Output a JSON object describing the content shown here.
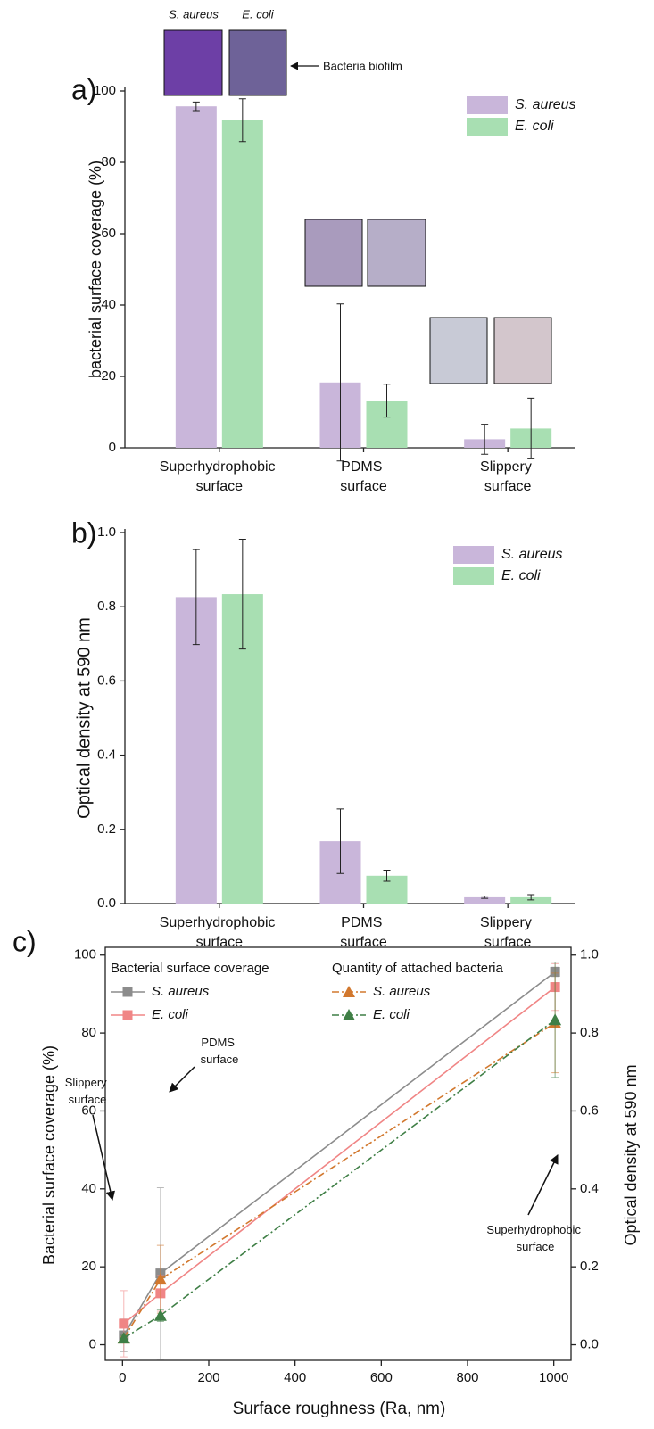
{
  "chart_data": [
    {
      "type": "bar",
      "panel_label": "a)",
      "y_label": "bacterial surface coverage (%)",
      "categories": [
        "Superhydrophobic surface",
        "PDMS surface",
        "Slippery surface"
      ],
      "series": [
        {
          "name": "S. aureus",
          "color": "#c9b6da",
          "values": [
            95.7,
            18.3,
            2.4
          ],
          "errors": [
            1.2,
            22,
            4.2
          ]
        },
        {
          "name": "E. coli",
          "color": "#a8dfb2",
          "values": [
            91.8,
            13.2,
            5.4
          ],
          "errors": [
            6,
            4.6,
            8.5
          ]
        }
      ],
      "ylim": [
        0,
        100
      ],
      "yticks": [
        0,
        20,
        40,
        60,
        80,
        100
      ],
      "annotations": [
        "S. aureus",
        "E. coli",
        "Bacteria biofilm"
      ],
      "legend": "upper right"
    },
    {
      "type": "bar",
      "panel_label": "b)",
      "y_label": "Optical density at 590 nm",
      "categories": [
        "Superhydrophobic surface",
        "PDMS surface",
        "Slippery surface"
      ],
      "series": [
        {
          "name": "S. aureus",
          "color": "#c9b6da",
          "values": [
            0.826,
            0.168,
            0.017
          ],
          "errors": [
            0.128,
            0.087,
            0.003
          ]
        },
        {
          "name": "E. coli",
          "color": "#a8dfb2",
          "values": [
            0.834,
            0.075,
            0.017
          ],
          "errors": [
            0.148,
            0.015,
            0.007
          ]
        }
      ],
      "ylim": [
        0,
        1
      ],
      "yticks": [
        {
          "value": 0,
          "label": "0.0"
        },
        0.2,
        0.4,
        0.6,
        0.8,
        {
          "value": 1,
          "label": "1.0"
        }
      ],
      "legend": "upper right"
    },
    {
      "type": "line",
      "panel_label": "c)",
      "x_label": "Surface roughness (Ra, nm)",
      "y_label": "Bacterial surface coverage (%)",
      "y2_label": "Optical density at 590 nm",
      "legend_titles": [
        "Bacterial surface coverage",
        "Quantity of attached bacteria"
      ],
      "x": [
        3,
        88,
        1003
      ],
      "series": [
        {
          "name": "S. aureus",
          "color": "#8c8c8c",
          "marker": "square",
          "linestyle": "solid",
          "values": [
            2.4,
            18.3,
            95.7
          ],
          "errors": [
            4.2,
            22,
            1.2
          ]
        },
        {
          "name": "E. coli",
          "color": "#f08585",
          "marker": "square",
          "linestyle": "solid",
          "values": [
            5.4,
            13.2,
            91.8
          ],
          "errors": [
            8.5,
            4.6,
            6
          ]
        },
        {
          "name": "S. aureus",
          "color": "#d2782e",
          "marker": "triangle",
          "linestyle": "dashdot",
          "axis": "y2",
          "values": [
            0.017,
            0.168,
            0.826
          ],
          "errors": [
            0.003,
            0.087,
            0.128
          ]
        },
        {
          "name": "E. coli",
          "color": "#3f7f46",
          "marker": "triangle",
          "linestyle": "dashdot",
          "axis": "y2",
          "values": [
            0.017,
            0.075,
            0.834
          ],
          "errors": [
            0.007,
            0.015,
            0.148
          ]
        }
      ],
      "xlim": [
        -40,
        1040
      ],
      "xticks": [
        0,
        200,
        400,
        600,
        800,
        1000
      ],
      "ylim": [
        -4,
        102
      ],
      "yticks": [
        0,
        20,
        40,
        60,
        80,
        100
      ],
      "y2lim": [
        -0.04,
        1.02
      ],
      "y2ticks": [
        {
          "value": 0,
          "label": "0.0"
        },
        0.2,
        0.4,
        0.6,
        0.8,
        {
          "value": 1,
          "label": "1.0"
        }
      ],
      "annotations": [
        "Slippery surface",
        "PDMS surface",
        "Superhydrophobic surface"
      ],
      "legend": "upper left"
    }
  ]
}
